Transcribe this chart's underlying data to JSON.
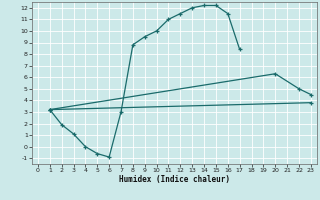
{
  "xlabel": "Humidex (Indice chaleur)",
  "bg_color": "#cce9e9",
  "line_color": "#1a6b6b",
  "grid_color": "#ffffff",
  "xlim": [
    -0.5,
    23.5
  ],
  "ylim": [
    -1.5,
    12.5
  ],
  "xticks": [
    0,
    1,
    2,
    3,
    4,
    5,
    6,
    7,
    8,
    9,
    10,
    11,
    12,
    13,
    14,
    15,
    16,
    17,
    18,
    19,
    20,
    21,
    22,
    23
  ],
  "yticks": [
    -1,
    0,
    1,
    2,
    3,
    4,
    5,
    6,
    7,
    8,
    9,
    10,
    11,
    12
  ],
  "curve1_x": [
    1,
    2,
    3,
    4,
    5,
    6,
    7,
    8,
    9,
    10,
    11,
    12,
    13,
    14,
    15,
    16,
    17
  ],
  "curve1_y": [
    3.2,
    1.9,
    1.1,
    0.0,
    -0.6,
    -0.9,
    3.0,
    8.8,
    9.5,
    10.0,
    11.0,
    11.5,
    12.0,
    12.2,
    12.2,
    11.5,
    8.4
  ],
  "curve2_x": [
    1,
    20,
    22,
    23
  ],
  "curve2_y": [
    3.2,
    6.3,
    5.0,
    4.5
  ],
  "curve3_x": [
    1,
    23
  ],
  "curve3_y": [
    3.2,
    3.8
  ]
}
